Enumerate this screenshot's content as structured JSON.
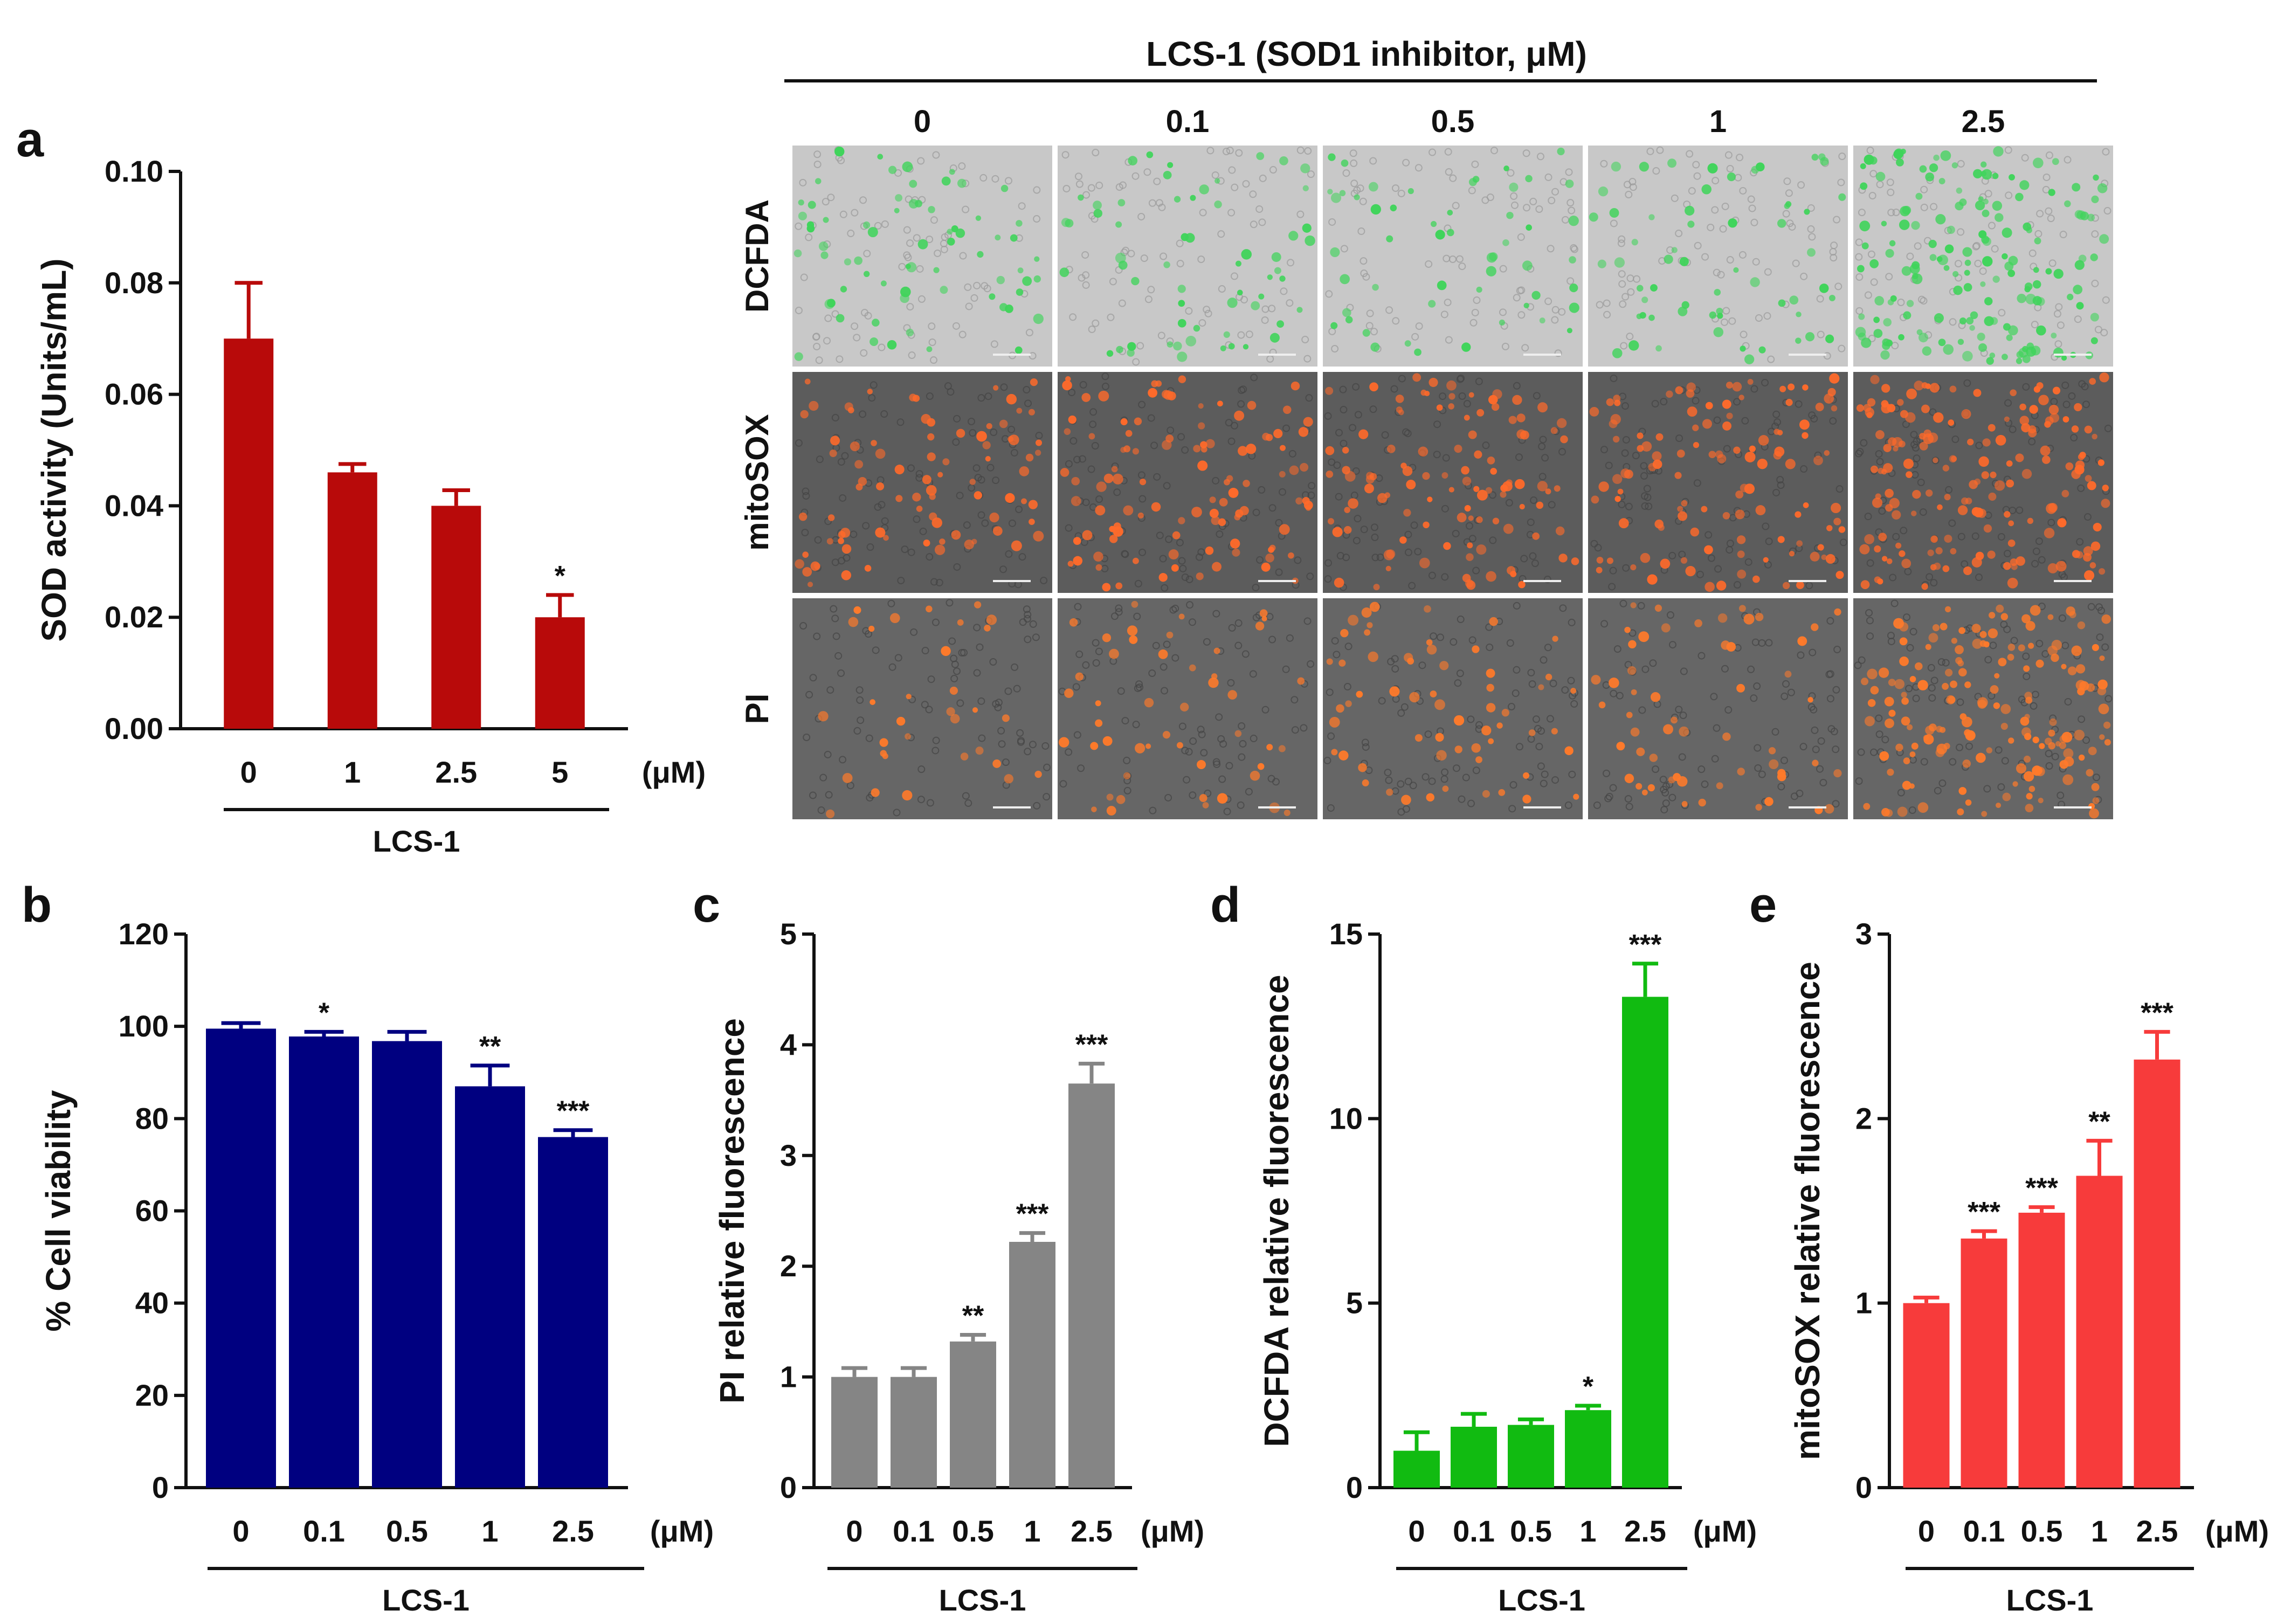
{
  "chart_data": [
    {
      "panel": "a",
      "type": "bar",
      "title": "",
      "categories": [
        "0",
        "1",
        "2.5",
        "5"
      ],
      "values": [
        0.07,
        0.046,
        0.04,
        0.02
      ],
      "errors": [
        0.01,
        0.0015,
        0.0028,
        0.004
      ],
      "significance": [
        "",
        "",
        "",
        "*"
      ],
      "yticks": [
        "0.00",
        "0.02",
        "0.04",
        "0.06",
        "0.08",
        "0.10"
      ],
      "ylim": [
        0,
        0.1
      ],
      "ylabel": "SOD activity (Units/mL)",
      "unit": "(μM)",
      "group_label": "LCS-1",
      "color": "#b80a0a",
      "grid": false
    },
    {
      "panel": "b",
      "type": "bar",
      "title": "",
      "categories": [
        "0",
        "0.1",
        "0.5",
        "1",
        "2.5"
      ],
      "values": [
        99.5,
        97.8,
        96.8,
        87,
        76
      ],
      "errors": [
        1.2,
        1.0,
        2.0,
        4.5,
        1.5
      ],
      "significance": [
        "",
        "*",
        "",
        "**",
        "***"
      ],
      "yticks": [
        "0",
        "20",
        "40",
        "60",
        "80",
        "100",
        "120"
      ],
      "ylim": [
        0,
        120
      ],
      "ylabel": "% Cell viability",
      "unit": "(μM)",
      "group_label": "LCS-1",
      "color": "#000080",
      "grid": false
    },
    {
      "panel": "c",
      "type": "bar",
      "title": "",
      "categories": [
        "0",
        "0.1",
        "0.5",
        "1",
        "2.5"
      ],
      "values": [
        1.0,
        1.0,
        1.32,
        2.22,
        3.65
      ],
      "errors": [
        0.08,
        0.08,
        0.06,
        0.08,
        0.18
      ],
      "significance": [
        "",
        "",
        "**",
        "***",
        "***"
      ],
      "yticks": [
        "0",
        "1",
        "2",
        "3",
        "4",
        "5"
      ],
      "ylim": [
        0,
        5
      ],
      "ylabel": "PI relative fluorescence",
      "unit": "(μM)",
      "group_label": "LCS-1",
      "color": "#858585",
      "grid": false
    },
    {
      "panel": "d",
      "type": "bar",
      "title": "",
      "categories": [
        "0",
        "0.1",
        "0.5",
        "1",
        "2.5"
      ],
      "values": [
        1.0,
        1.65,
        1.7,
        2.1,
        13.3
      ],
      "errors": [
        0.5,
        0.35,
        0.15,
        0.12,
        0.9
      ],
      "significance": [
        "",
        "",
        "",
        "*",
        "***"
      ],
      "yticks": [
        "0",
        "5",
        "10",
        "15"
      ],
      "ylim": [
        0,
        15
      ],
      "ylabel": "DCFDA relative fluorescence",
      "unit": "(μM)",
      "group_label": "LCS-1",
      "color": "#11bb11",
      "grid": false
    },
    {
      "panel": "e",
      "type": "bar",
      "title": "",
      "categories": [
        "0",
        "0.1",
        "0.5",
        "1",
        "2.5"
      ],
      "values": [
        1.0,
        1.35,
        1.49,
        1.69,
        2.32
      ],
      "errors": [
        0.03,
        0.04,
        0.03,
        0.19,
        0.15
      ],
      "significance": [
        "",
        "***",
        "***",
        "**",
        "***"
      ],
      "yticks": [
        "0",
        "1",
        "2",
        "3"
      ],
      "ylim": [
        0,
        3
      ],
      "ylabel": "mitoSOX relative fluorescence",
      "unit": "(μM)",
      "group_label": "LCS-1",
      "color": "#f73b3b",
      "grid": false
    }
  ],
  "micrographs": {
    "title": "LCS-1 (SOD1 inhibitor, μM)",
    "columns": [
      "0",
      "0.1",
      "0.5",
      "1",
      "2.5"
    ],
    "rows": [
      {
        "label": "DCFDA",
        "background": "#c8c8c8",
        "dot_color": "#3fd45a",
        "intensity": [
          0.35,
          0.3,
          0.25,
          0.3,
          1.0
        ]
      },
      {
        "label": "mitoSOX",
        "background": "#5c5c5c",
        "dot_color": "#ff6a2a",
        "intensity": [
          0.45,
          0.6,
          0.6,
          0.65,
          1.0
        ]
      },
      {
        "label": "PI",
        "background": "#666666",
        "dot_color": "#ff7a2a",
        "intensity": [
          0.12,
          0.22,
          0.3,
          0.28,
          1.0
        ]
      }
    ]
  }
}
